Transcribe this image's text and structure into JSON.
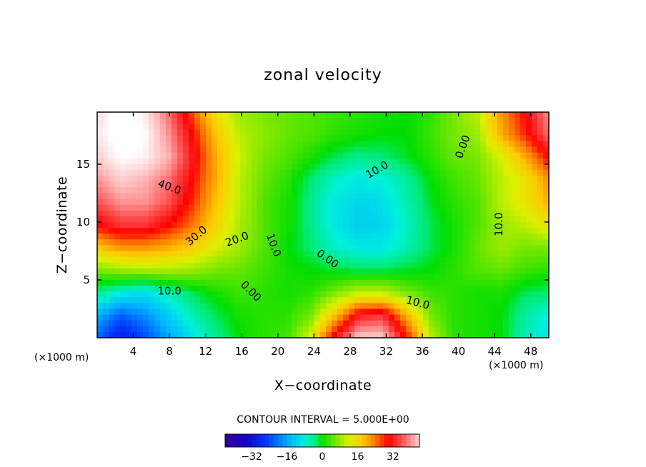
{
  "chart_data": {
    "type": "contour",
    "title": "zonal velocity",
    "xlabel": "X−coordinate",
    "ylabel": "Z−coordinate",
    "x_unit": "(×1000 m)",
    "y_unit": "(×1000 m)",
    "xlim": [
      0,
      50
    ],
    "ylim": [
      0,
      19.5
    ],
    "x_ticks": [
      4,
      8,
      12,
      16,
      20,
      24,
      28,
      32,
      36,
      40,
      44,
      48
    ],
    "x_tick_labels": [
      "4",
      "8",
      "12",
      "16",
      "20",
      "24",
      "28",
      "32",
      "36",
      "40",
      "44",
      "48"
    ],
    "y_ticks": [
      5,
      10,
      15
    ],
    "y_tick_labels": [
      "5",
      "10",
      "15"
    ],
    "contour_interval": 5.0,
    "contour_interval_text": "CONTOUR INTERVAL = 5.000E+00",
    "contour_labels": [
      {
        "text": "40.0",
        "x": 8,
        "z": 13.0,
        "angle": 20
      },
      {
        "text": "30.0",
        "x": 11,
        "z": 8.8,
        "angle": -40
      },
      {
        "text": "20.0",
        "x": 15.5,
        "z": 8.5,
        "angle": -20
      },
      {
        "text": "10.0",
        "x": 19.5,
        "z": 8.0,
        "angle": 70
      },
      {
        "text": "10.0",
        "x": 8,
        "z": 4.0,
        "angle": 0
      },
      {
        "text": "0.00",
        "x": 17,
        "z": 4.0,
        "angle": 45
      },
      {
        "text": "0.00",
        "x": 25.5,
        "z": 6.8,
        "angle": 35
      },
      {
        "text": "10.0",
        "x": 31,
        "z": 14.5,
        "angle": -30
      },
      {
        "text": "10.0",
        "x": 35.5,
        "z": 3.0,
        "angle": 15
      },
      {
        "text": "0.00",
        "x": 40.5,
        "z": 16.5,
        "angle": -70
      },
      {
        "text": "10.0",
        "x": 44.5,
        "z": 9.8,
        "angle": -90
      }
    ],
    "grid_values": [
      [
        45,
        50,
        46,
        38,
        26,
        14,
        8,
        6,
        5,
        4,
        3,
        2,
        1,
        0,
        2,
        6,
        10,
        22,
        30,
        40
      ],
      [
        46,
        50,
        48,
        40,
        30,
        18,
        10,
        7,
        5,
        4,
        2,
        1,
        0,
        0,
        3,
        6,
        8,
        20,
        28,
        38
      ],
      [
        44,
        48,
        47,
        42,
        32,
        20,
        11,
        6,
        4,
        1,
        -2,
        -4,
        -3,
        -1,
        2,
        5,
        6,
        12,
        20,
        30
      ],
      [
        40,
        44,
        42,
        38,
        30,
        20,
        10,
        5,
        2,
        -3,
        -7,
        -9,
        -8,
        -5,
        0,
        3,
        5,
        10,
        14,
        22
      ],
      [
        36,
        40,
        40,
        36,
        28,
        18,
        10,
        4,
        1,
        -4,
        -9,
        -11,
        -10,
        -6,
        -1,
        2,
        4,
        10,
        14,
        20
      ],
      [
        30,
        34,
        34,
        30,
        24,
        16,
        9,
        4,
        1,
        -4,
        -9,
        -12,
        -11,
        -7,
        -2,
        1,
        4,
        8,
        10,
        14
      ],
      [
        18,
        22,
        22,
        20,
        17,
        12,
        8,
        4,
        0,
        -3,
        -7,
        -9,
        -9,
        -6,
        -2,
        1,
        5,
        8,
        6,
        6
      ],
      [
        6,
        8,
        9,
        9,
        8,
        6,
        5,
        3,
        1,
        0,
        -1,
        -2,
        -2,
        -1,
        0,
        2,
        4,
        5,
        3,
        2
      ],
      [
        -4,
        -8,
        -10,
        -6,
        -2,
        1,
        3,
        2,
        1,
        2,
        6,
        10,
        10,
        6,
        3,
        2,
        1,
        1,
        -2,
        -3
      ],
      [
        -15,
        -22,
        -18,
        -12,
        -6,
        -2,
        1,
        2,
        2,
        6,
        18,
        32,
        34,
        20,
        6,
        2,
        1,
        0,
        -5,
        -8
      ],
      [
        -22,
        -30,
        -24,
        -16,
        -10,
        -4,
        0,
        2,
        3,
        12,
        32,
        44,
        44,
        30,
        10,
        2,
        1,
        0,
        -6,
        -10
      ]
    ],
    "colorbar": {
      "vmin": -44,
      "vmax": 44,
      "ticks": [
        -32,
        -16,
        0,
        16,
        32
      ],
      "tick_labels": [
        "−32",
        "−16",
        "0",
        "16",
        "32"
      ]
    },
    "colors": {
      "low": "#3a0096",
      "zero": "#00dd00",
      "high": "#ff0000",
      "max_fill": "#ffffff"
    }
  }
}
